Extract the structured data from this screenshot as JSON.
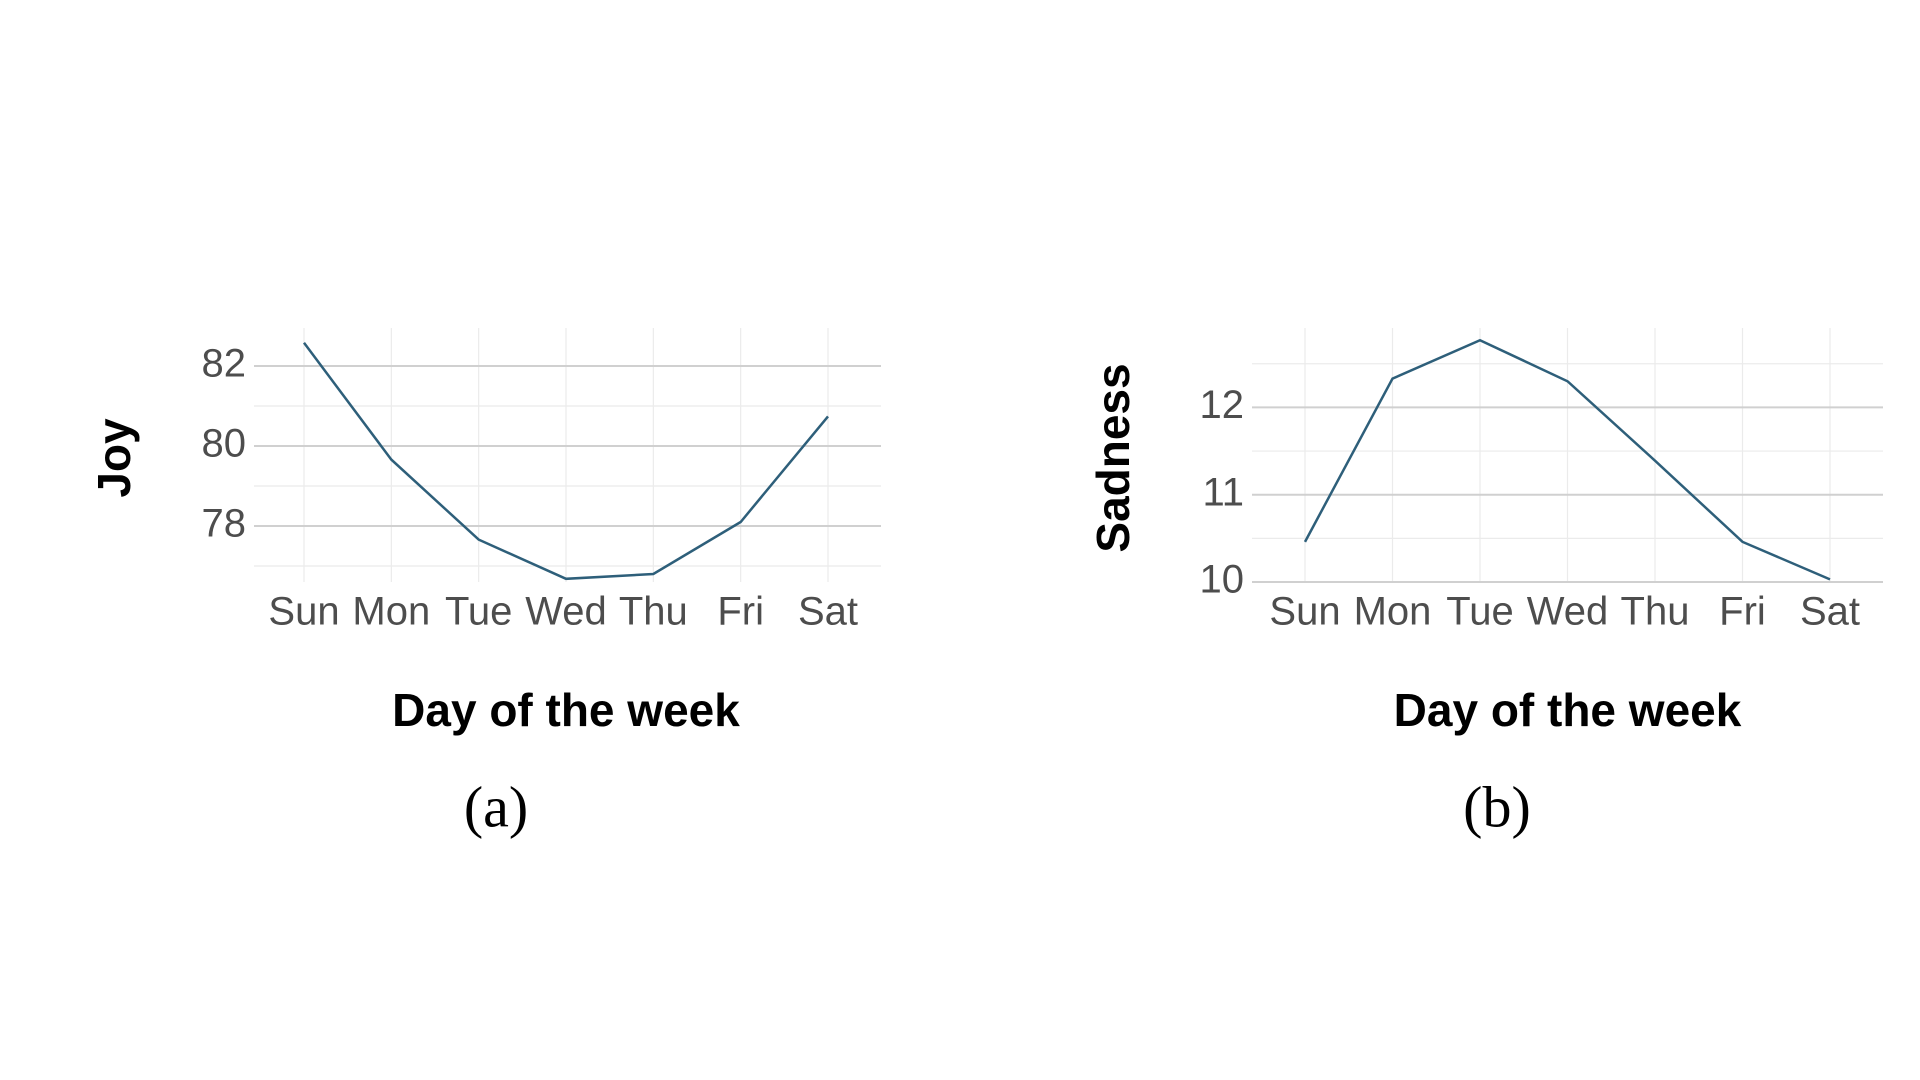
{
  "chart_data": [
    {
      "type": "line",
      "caption": "(a)",
      "x_label": "Day of the week",
      "y_label": "Joy",
      "categories": [
        "Sun",
        "Mon",
        "Tue",
        "Wed",
        "Thu",
        "Fri",
        "Sat"
      ],
      "series": [
        {
          "name": "Joy",
          "color": "#2e5f7a",
          "values": [
            82.58,
            79.66,
            77.66,
            76.68,
            76.8,
            78.1,
            80.74
          ]
        }
      ],
      "ylim": [
        76.6,
        82.95
      ],
      "yticks": [
        78,
        80,
        82
      ],
      "minor_yticks": [
        77,
        79,
        81
      ],
      "grid": true
    },
    {
      "type": "line",
      "caption": "(b)",
      "x_label": "Day of the week",
      "y_label": "Sadness",
      "categories": [
        "Sun",
        "Mon",
        "Tue",
        "Wed",
        "Thu",
        "Fri",
        "Sat"
      ],
      "series": [
        {
          "name": "Sadness",
          "color": "#2e5f7a",
          "values": [
            10.46,
            12.33,
            12.77,
            12.3,
            11.39,
            10.46,
            10.03
          ]
        }
      ],
      "ylim": [
        10,
        12.91
      ],
      "yticks": [
        10,
        11,
        12
      ],
      "minor_yticks": [
        10.5,
        11.5,
        12.5
      ],
      "grid": true
    }
  ]
}
